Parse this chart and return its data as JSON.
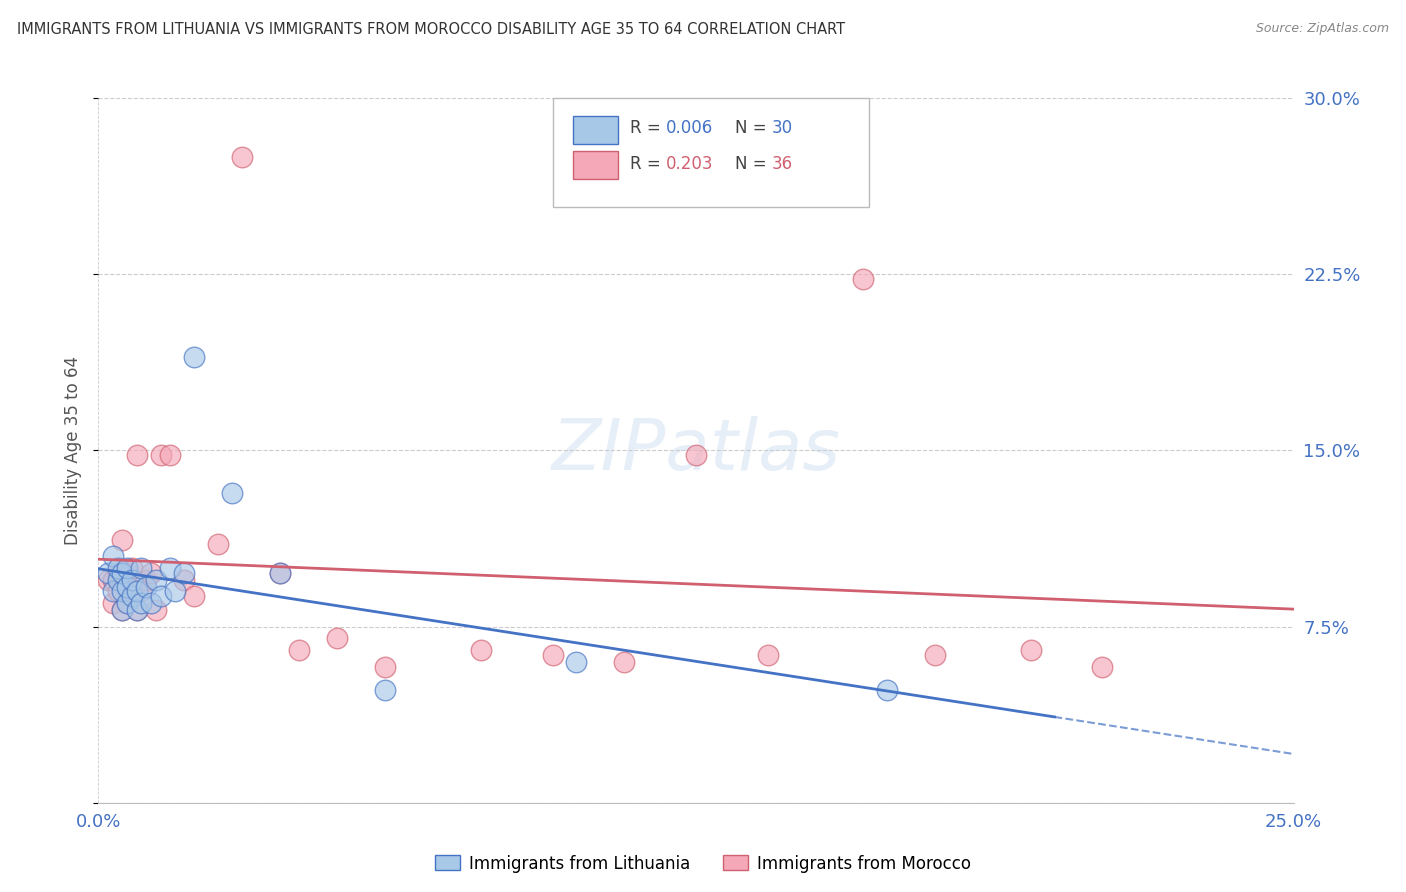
{
  "title": "IMMIGRANTS FROM LITHUANIA VS IMMIGRANTS FROM MOROCCO DISABILITY AGE 35 TO 64 CORRELATION CHART",
  "source": "Source: ZipAtlas.com",
  "ylabel_label": "Disability Age 35 to 64",
  "ylabel_ticks": [
    0.0,
    0.075,
    0.15,
    0.225,
    0.3
  ],
  "ylabel_tick_labels": [
    "",
    "7.5%",
    "15.0%",
    "22.5%",
    "30.0%"
  ],
  "xlim": [
    0.0,
    0.25
  ],
  "ylim": [
    0.0,
    0.3
  ],
  "r_lithuania": 0.006,
  "n_lithuania": 30,
  "r_morocco": 0.203,
  "n_morocco": 36,
  "legend_color_lithuania": "#a8c8e8",
  "legend_color_morocco": "#f4a8b8",
  "trendline_color_lithuania": "#4472C4",
  "trendline_color_morocco": "#d06070",
  "scatter_color_lithuania": "#a8c8e8",
  "scatter_color_morocco": "#f4a8b8",
  "background_color": "#ffffff",
  "grid_color": "#cccccc",
  "title_color": "#333333",
  "axis_label_color": "#4472C4",
  "lithuania_x": [
    0.002,
    0.003,
    0.003,
    0.004,
    0.004,
    0.005,
    0.005,
    0.005,
    0.006,
    0.006,
    0.006,
    0.007,
    0.007,
    0.008,
    0.008,
    0.009,
    0.009,
    0.01,
    0.011,
    0.012,
    0.013,
    0.015,
    0.016,
    0.018,
    0.02,
    0.028,
    0.038,
    0.06,
    0.1,
    0.165
  ],
  "lithuania_y": [
    0.098,
    0.09,
    0.105,
    0.095,
    0.1,
    0.082,
    0.09,
    0.098,
    0.085,
    0.092,
    0.1,
    0.088,
    0.095,
    0.082,
    0.09,
    0.085,
    0.1,
    0.092,
    0.085,
    0.095,
    0.088,
    0.1,
    0.09,
    0.098,
    0.19,
    0.132,
    0.098,
    0.048,
    0.06,
    0.048
  ],
  "morocco_x": [
    0.002,
    0.003,
    0.003,
    0.004,
    0.004,
    0.005,
    0.005,
    0.006,
    0.006,
    0.007,
    0.007,
    0.008,
    0.008,
    0.009,
    0.01,
    0.011,
    0.012,
    0.013,
    0.015,
    0.018,
    0.02,
    0.025,
    0.03,
    0.038,
    0.042,
    0.05,
    0.06,
    0.08,
    0.095,
    0.11,
    0.125,
    0.14,
    0.16,
    0.175,
    0.195,
    0.21
  ],
  "morocco_y": [
    0.095,
    0.085,
    0.095,
    0.09,
    0.098,
    0.082,
    0.112,
    0.085,
    0.098,
    0.09,
    0.1,
    0.082,
    0.148,
    0.09,
    0.095,
    0.098,
    0.082,
    0.148,
    0.148,
    0.095,
    0.088,
    0.11,
    0.275,
    0.098,
    0.065,
    0.07,
    0.058,
    0.065,
    0.063,
    0.06,
    0.148,
    0.063,
    0.223,
    0.063,
    0.065,
    0.058
  ]
}
